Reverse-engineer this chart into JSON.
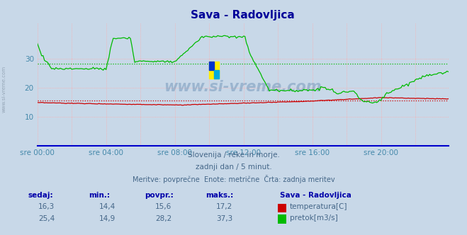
{
  "title": "Sava - Radovljica",
  "title_color": "#000099",
  "bg_color": "#c8d8e8",
  "plot_bg_color": "#c8d8e8",
  "xlabel_color": "#4488aa",
  "ylabel_color": "#4488aa",
  "grid_color": "#ffaaaa",
  "x_ticks_labels": [
    "sre 00:00",
    "sre 04:00",
    "sre 08:00",
    "sre 12:00",
    "sre 16:00",
    "sre 20:00"
  ],
  "x_ticks_pos": [
    0,
    48,
    96,
    144,
    192,
    240
  ],
  "y_ticks": [
    10,
    20,
    30
  ],
  "ylim": [
    0,
    42
  ],
  "xlim": [
    0,
    287
  ],
  "temp_color": "#cc0000",
  "flow_color": "#00bb00",
  "temp_avg": 15.6,
  "flow_avg": 28.2,
  "temp_min": 14.4,
  "temp_max": 17.2,
  "temp_current": 16.3,
  "flow_min": 14.9,
  "flow_max": 37.3,
  "flow_current": 25.4,
  "subtitle1": "Slovenija / reke in morje.",
  "subtitle2": "zadnji dan / 5 minut.",
  "subtitle3": "Meritve: povprečne  Enote: metrične  Črta: zadnja meritev",
  "legend_title": "Sava - Radovljica",
  "legend_temp": "temperatura[C]",
  "legend_flow": "pretok[m3/s]",
  "watermark": "www.si-vreme.com",
  "watermark_color": "#7799bb",
  "sidebar_text": "www.si-vreme.com",
  "sidebar_color": "#8899aa"
}
